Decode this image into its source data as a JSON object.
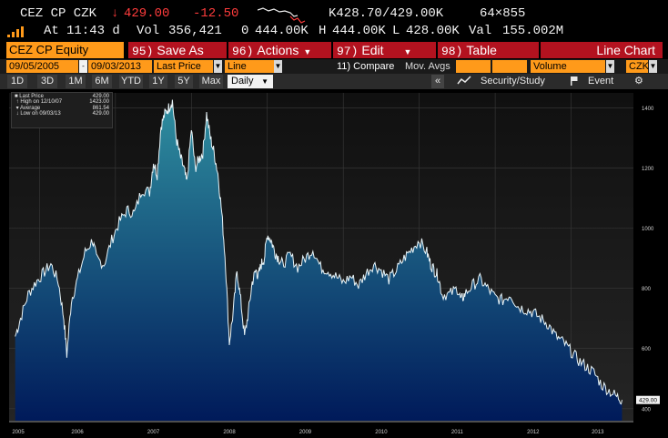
{
  "ticker": {
    "symbol": "CEZ CP CZK",
    "arrow": "↓",
    "last": "429.00",
    "change": "-12.50",
    "bid": "K428.70",
    "ask": "/429.00K",
    "size": "64×855"
  },
  "quote_row": {
    "at_label": "At",
    "time": "11:43 d",
    "vol_label": "Vol",
    "volume": "356,421",
    "open_label": "0",
    "open": "444.00K",
    "high_label": "H",
    "high": "444.00K",
    "low_label": "L",
    "low": "428.00K",
    "val_label": "Val",
    "value": "155.002M"
  },
  "toolbar": {
    "security": "CEZ CP Equity",
    "save_num": "95)",
    "save_label": "Save As",
    "actions_num": "96)",
    "actions_label": "Actions",
    "edit_num": "97)",
    "edit_label": "Edit",
    "table_num": "98)",
    "table_label": "Table",
    "chart_type": "Line Chart"
  },
  "controls": {
    "start_date": "09/05/2005",
    "end_date": "09/03/2013",
    "field": "Last Price",
    "style": "Line",
    "compare": "11) Compare",
    "mov_avgs": "Mov. Avgs",
    "lower": "Volume",
    "currency": "CZK"
  },
  "periods": [
    "1D",
    "3D",
    "1M",
    "6M",
    "YTD",
    "1Y",
    "5Y",
    "Max"
  ],
  "frequency": "Daily",
  "tools": {
    "collapse": "«",
    "security_study": "Security/Study",
    "event": "Event",
    "settings": "⚙"
  },
  "legend": [
    {
      "label": "Last Price",
      "value": "429.00"
    },
    {
      "label": "High on 12/10/07",
      "value": "1423.00"
    },
    {
      "label": "Average",
      "value": "861.54"
    },
    {
      "label": "Low on 09/03/13",
      "value": "429.00"
    }
  ],
  "colors": {
    "accent_orange": "#ff9a1a",
    "toolbar_red": "#b3121f",
    "negative": "#ff3c3c",
    "area_top": "#2f8fa0",
    "area_bottom": "#001a5a"
  },
  "chart_data": {
    "type": "area",
    "title": "",
    "xlabel": "",
    "ylabel": "",
    "x_ticks": [
      "2005",
      "2006",
      "2007",
      "2008",
      "2009",
      "2010",
      "2011",
      "2012",
      "2013"
    ],
    "y_ticks": [
      400,
      600,
      800,
      1000,
      1200,
      1400
    ],
    "ylim": [
      360,
      1450
    ],
    "last_price_label": "429.00",
    "series": [
      {
        "x": [
          2005.68,
          2005.75,
          2005.85,
          2005.95,
          2006.05,
          2006.15,
          2006.25,
          2006.32,
          2006.36,
          2006.42,
          2006.5,
          2006.6,
          2006.7,
          2006.75,
          2006.85,
          2006.95,
          2007.05,
          2007.15,
          2007.25,
          2007.35,
          2007.45,
          2007.5,
          2007.55,
          2007.6,
          2007.65,
          2007.7,
          2007.75,
          2007.8,
          2007.85,
          2007.9,
          2007.94,
          2008.0,
          2008.05,
          2008.1,
          2008.15,
          2008.2,
          2008.25,
          2008.3,
          2008.35,
          2008.4,
          2008.45,
          2008.5,
          2008.55,
          2008.6,
          2008.65,
          2008.7,
          2008.75,
          2008.8,
          2008.85,
          2008.88,
          2008.92,
          2008.96,
          2009.0,
          2009.05,
          2009.1,
          2009.15,
          2009.2,
          2009.3,
          2009.4,
          2009.5,
          2009.6,
          2009.7,
          2009.8,
          2009.9,
          2010.0,
          2010.1,
          2010.2,
          2010.3,
          2010.4,
          2010.5,
          2010.6,
          2010.7,
          2010.8,
          2010.9,
          2011.0,
          2011.1,
          2011.15,
          2011.2,
          2011.25,
          2011.3,
          2011.4,
          2011.5,
          2011.55,
          2011.6,
          2011.7,
          2011.8,
          2011.9,
          2012.0,
          2012.1,
          2012.2,
          2012.3,
          2012.4,
          2012.5,
          2012.6,
          2012.7,
          2012.8,
          2012.9,
          2013.0,
          2013.1,
          2013.2,
          2013.3,
          2013.4,
          2013.5,
          2013.6,
          2013.67
        ],
        "values": [
          640,
          700,
          780,
          820,
          850,
          880,
          820,
          700,
          580,
          760,
          830,
          920,
          960,
          900,
          880,
          960,
          1020,
          1060,
          1050,
          1130,
          1120,
          1220,
          1180,
          1340,
          1380,
          1400,
          1423,
          1300,
          1240,
          1200,
          1150,
          1330,
          1200,
          1230,
          1250,
          1380,
          1300,
          1250,
          1180,
          1050,
          880,
          620,
          720,
          860,
          760,
          640,
          720,
          820,
          860,
          840,
          880,
          900,
          980,
          960,
          920,
          900,
          880,
          910,
          870,
          900,
          930,
          870,
          860,
          840,
          820,
          840,
          810,
          850,
          880,
          860,
          830,
          860,
          900,
          930,
          960,
          920,
          880,
          860,
          840,
          780,
          780,
          800,
          760,
          780,
          810,
          830,
          800,
          770,
          760,
          780,
          740,
          730,
          720,
          700,
          680,
          640,
          620,
          590,
          560,
          540,
          520,
          480,
          460,
          440,
          429
        ]
      }
    ]
  }
}
